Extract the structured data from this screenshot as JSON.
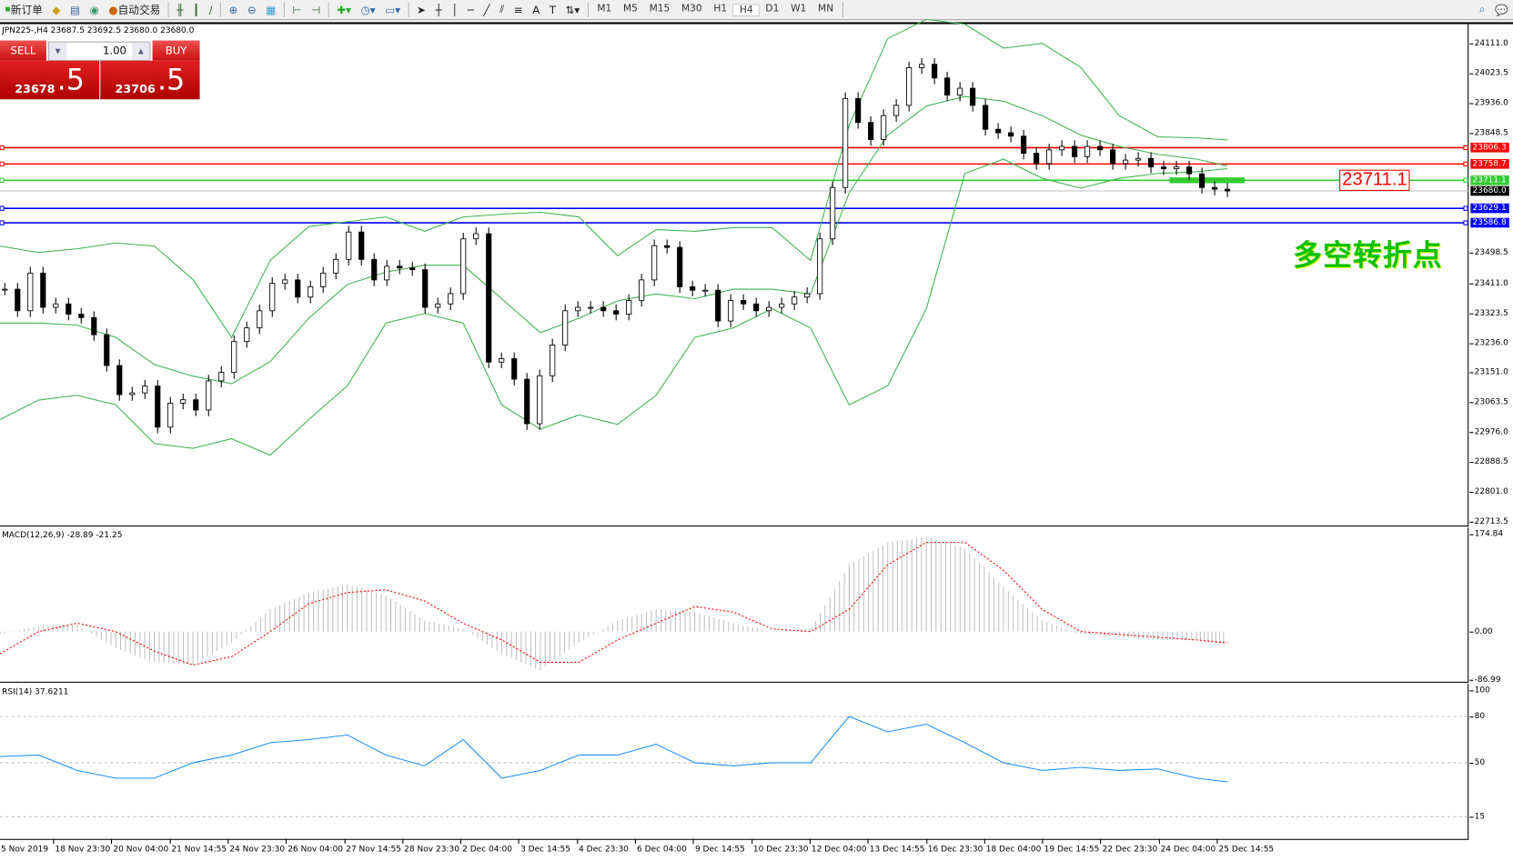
{
  "toolbar": {
    "new_order": "新订单",
    "auto_trading": "自动交易",
    "timeframes": [
      "M1",
      "M5",
      "M15",
      "M30",
      "H1",
      "H4",
      "D1",
      "W1",
      "MN"
    ],
    "active_timeframe": "H4",
    "icons": [
      "new-order-icon",
      "market-watch-icon",
      "navigator-icon",
      "signals-icon",
      "auto-trading-icon",
      "bar-chart-icon",
      "candlestick-icon",
      "line-chart-icon",
      "zoom-in-icon",
      "zoom-out-icon",
      "tile-windows-icon",
      "chart-shift-icon",
      "autoscroll-icon",
      "indicators-icon",
      "periods-icon",
      "templates-icon",
      "cursor-icon",
      "crosshair-icon",
      "vertical-line-icon",
      "horizontal-line-icon",
      "trendline-icon",
      "equidistant-channel-icon",
      "fibonacci-icon",
      "text-icon",
      "text-label-icon",
      "arrows-icon",
      "search-icon",
      "chat-icon"
    ]
  },
  "chart_header": "JPN225-,H4  23687.5 23692.5 23680.0 23680.0",
  "one_click": {
    "sell": "SELL",
    "buy": "BUY",
    "lot": "1.00",
    "sell_big": "23678",
    "sell_frac": ".5",
    "buy_big": "23706",
    "buy_frac": ".5"
  },
  "annotation": {
    "price_box": "23711.1",
    "text": "多空转折点",
    "text_color": "#00c000"
  },
  "colors": {
    "up_body": "#ffffff",
    "down_body": "#000000",
    "bands": "#3cb44b",
    "macd_hist": "#c0c0c0",
    "macd_signal": "#ff0000",
    "rsi": "#1e90ff",
    "resistance": "#ff0000",
    "pivot": "#33cc33",
    "support": "#0000ff"
  },
  "chart_data": [
    {
      "type": "candlestick",
      "symbol": "JPN225-",
      "timeframe": "H4",
      "y_ticks": [
        "24111.0",
        "24023.5",
        "23936.0",
        "23848.5",
        "23498.5",
        "23411.0",
        "23323.5",
        "23236.0",
        "23151.0",
        "23063.5",
        "22976.0",
        "22888.5",
        "22801.0",
        "22713.5"
      ],
      "ylim": [
        22713.5,
        24170
      ],
      "x_ticks": [
        "5 Nov 2019",
        "18 Nov 23:30",
        "20 Nov 04:00",
        "21 Nov 14:55",
        "24 Nov 23:30",
        "26 Nov 04:00",
        "27 Nov 14:55",
        "28 Nov 23:30",
        "2 Dec 04:00",
        "3 Dec 14:55",
        "4 Dec 23:30",
        "6 Dec 04:00",
        "9 Dec 14:55",
        "10 Dec 23:30",
        "12 Dec 04:00",
        "13 Dec 14:55",
        "16 Dec 23:30",
        "18 Dec 04:00",
        "19 Dec 14:55",
        "22 Dec 23:30",
        "24 Dec 04:00",
        "25 Dec 14:55"
      ],
      "close": [
        23393,
        23330,
        23440,
        23340,
        23350,
        23320,
        23310,
        23260,
        23170,
        23085,
        23090,
        23110,
        22990,
        23060,
        23070,
        23040,
        23125,
        23150,
        23240,
        23280,
        23330,
        23410,
        23420,
        23370,
        23400,
        23440,
        23480,
        23560,
        23480,
        23420,
        23460,
        23455,
        23450,
        23340,
        23350,
        23380,
        23540,
        23555,
        23180,
        23190,
        23130,
        23000,
        23140,
        23230,
        23330,
        23340,
        23340,
        23330,
        23320,
        23360,
        23420,
        23520,
        23515,
        23400,
        23390,
        23390,
        23300,
        23360,
        23350,
        23330,
        23340,
        23350,
        23370,
        23380,
        23540,
        23690,
        23950,
        23880,
        23830,
        23900,
        23930,
        24040,
        24050,
        24010,
        23960,
        23980,
        23930,
        23860,
        23850,
        23840,
        23790,
        23760,
        23800,
        23810,
        23780,
        23810,
        23800,
        23760,
        23770,
        23775,
        23750,
        23745,
        23750,
        23730,
        23690,
        23685,
        23680
      ],
      "bollinger_upper": [
        23519,
        23500,
        23511,
        23528,
        23519,
        23421,
        23252,
        23477,
        23576,
        23590,
        23604,
        23562,
        23604,
        23612,
        23618,
        23604,
        23491,
        23567,
        23562,
        23573,
        23573,
        23477,
        23872,
        24125,
        24181,
        24167,
        24097,
        24111,
        24041,
        23900,
        23838,
        23835,
        23829
      ],
      "bollinger_middle": [
        23294,
        23294,
        23288,
        23252,
        23173,
        23139,
        23117,
        23181,
        23308,
        23407,
        23443,
        23463,
        23463,
        23365,
        23266,
        23308,
        23359,
        23379,
        23365,
        23393,
        23393,
        23379,
        23674,
        23843,
        23928,
        23956,
        23942,
        23900,
        23843,
        23810,
        23787,
        23773,
        23753
      ],
      "bollinger_lower": [
        23012,
        23069,
        23083,
        23055,
        22942,
        22928,
        22956,
        22908,
        23012,
        23111,
        23294,
        23322,
        23294,
        23055,
        22984,
        23026,
        22998,
        23083,
        23252,
        23280,
        23336,
        23280,
        23055,
        23111,
        23336,
        23731,
        23773,
        23717,
        23688,
        23717,
        23731,
        23736,
        23745
      ],
      "levels": [
        {
          "value": "23806.3",
          "kind": "resistance"
        },
        {
          "value": "23758.7",
          "kind": "resistance"
        },
        {
          "value": "23711.1",
          "kind": "pivot"
        },
        {
          "value": "23680.0",
          "kind": "current"
        },
        {
          "value": "23629.1",
          "kind": "support"
        },
        {
          "value": "23586.8",
          "kind": "support"
        }
      ]
    },
    {
      "type": "bar+line",
      "label": "MACD(12,26,9) -28.89 -21.25",
      "y_ticks": [
        "174.84",
        "0.00",
        "-86.99"
      ],
      "ylim": [
        -86.99,
        174.84
      ],
      "histogram": [
        -5,
        10,
        12,
        -30,
        -55,
        -60,
        -20,
        40,
        70,
        85,
        65,
        20,
        5,
        -40,
        -70,
        -20,
        20,
        40,
        35,
        15,
        0,
        5,
        120,
        160,
        170,
        150,
        80,
        20,
        -5,
        -10,
        -15,
        -15,
        -25
      ],
      "signal": [
        -40,
        0,
        15,
        0,
        -35,
        -60,
        -45,
        0,
        50,
        70,
        75,
        55,
        15,
        -15,
        -55,
        -55,
        -15,
        15,
        45,
        35,
        5,
        0,
        40,
        120,
        160,
        160,
        110,
        40,
        0,
        -5,
        -10,
        -15,
        -20
      ]
    },
    {
      "type": "line",
      "label": "RSI(14) 37.6211",
      "y_ticks": [
        "100",
        "80",
        "50",
        "15"
      ],
      "ylim": [
        0,
        100
      ],
      "values": [
        54,
        55,
        45,
        40,
        40,
        50,
        55,
        63,
        65,
        68,
        55,
        48,
        65,
        40,
        45,
        55,
        55,
        62,
        50,
        48,
        50,
        50,
        80,
        70,
        75,
        63,
        50,
        45,
        47,
        45,
        46,
        40,
        37.6
      ]
    }
  ]
}
